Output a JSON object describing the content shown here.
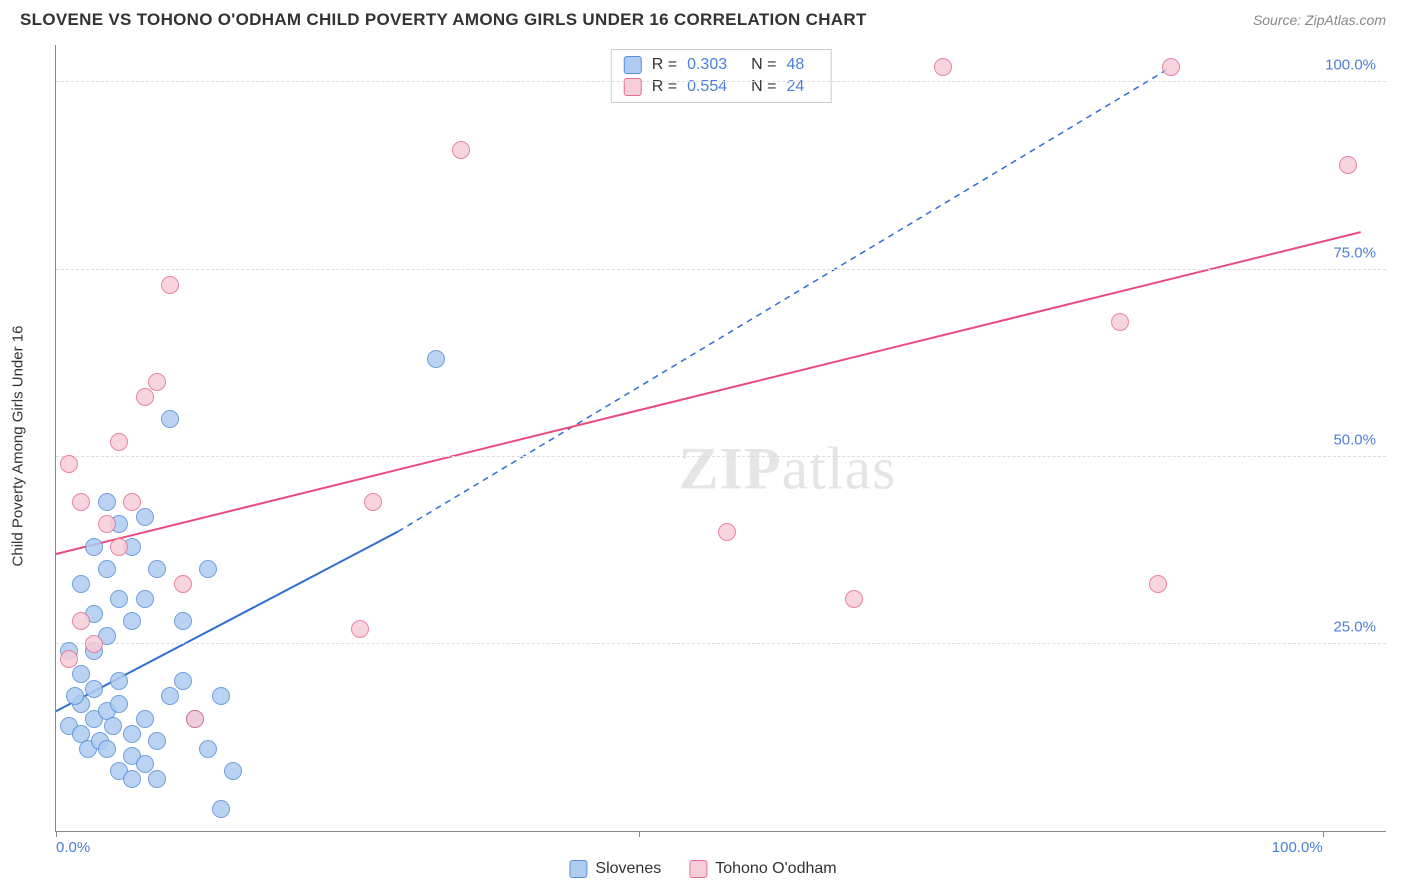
{
  "title": "SLOVENE VS TOHONO O'ODHAM CHILD POVERTY AMONG GIRLS UNDER 16 CORRELATION CHART",
  "source_label": "Source: ZipAtlas.com",
  "ylabel": "Child Poverty Among Girls Under 16",
  "watermark": {
    "bold": "ZIP",
    "rest": "atlas"
  },
  "chart": {
    "type": "scatter",
    "background_color": "#ffffff",
    "grid_color": "#dddddd",
    "axis_color": "#888888",
    "label_color": "#4a7fd8",
    "xlim": [
      0,
      105
    ],
    "ylim": [
      0,
      105
    ],
    "ytick_step": 25,
    "ytick_labels": [
      "25.0%",
      "50.0%",
      "75.0%",
      "100.0%"
    ],
    "xtick_positions": [
      0,
      46,
      100
    ],
    "xtick_labels": [
      "0.0%",
      "",
      "100.0%"
    ],
    "marker_radius": 9,
    "marker_border_width": 1.5,
    "trend_line_width": 2,
    "series": [
      {
        "name": "Slovenes",
        "marker_fill": "#aeccf2",
        "marker_stroke": "#5a8fd6",
        "line_color": "#2e6fd1",
        "r": "0.303",
        "n": "48",
        "points": [
          [
            1,
            14
          ],
          [
            2,
            17
          ],
          [
            2,
            13
          ],
          [
            3,
            15
          ],
          [
            1.5,
            18
          ],
          [
            2.5,
            11
          ],
          [
            3,
            19
          ],
          [
            4,
            16
          ],
          [
            3.5,
            12
          ],
          [
            4.5,
            14
          ],
          [
            2,
            21
          ],
          [
            1,
            24
          ],
          [
            3,
            24
          ],
          [
            5,
            17
          ],
          [
            4,
            11
          ],
          [
            6,
            13
          ],
          [
            5,
            20
          ],
          [
            7,
            15
          ],
          [
            6,
            10
          ],
          [
            8,
            12
          ],
          [
            7,
            9
          ],
          [
            9,
            18
          ],
          [
            8,
            7
          ],
          [
            4,
            26
          ],
          [
            3,
            29
          ],
          [
            5,
            31
          ],
          [
            6,
            28
          ],
          [
            2,
            33
          ],
          [
            4,
            35
          ],
          [
            7,
            31
          ],
          [
            3,
            38
          ],
          [
            5,
            41
          ],
          [
            6,
            38
          ],
          [
            8,
            35
          ],
          [
            4,
            44
          ],
          [
            10,
            20
          ],
          [
            11,
            15
          ],
          [
            12,
            11
          ],
          [
            13,
            18
          ],
          [
            14,
            8
          ],
          [
            10,
            28
          ],
          [
            9,
            55
          ],
          [
            12,
            35
          ],
          [
            13,
            3
          ],
          [
            30,
            63
          ],
          [
            5,
            8
          ],
          [
            6,
            7
          ],
          [
            7,
            42
          ]
        ],
        "trend": {
          "x1": 0,
          "y1": 16,
          "x2": 27,
          "y2": 40
        },
        "trend_ext": {
          "x1": 27,
          "y1": 40,
          "x2": 88,
          "y2": 102
        }
      },
      {
        "name": "Tohono O'odham",
        "marker_fill": "#f7cdd8",
        "marker_stroke": "#e66e92",
        "line_color": "#e94c7a",
        "r": "0.554",
        "n": "24",
        "points": [
          [
            1,
            23
          ],
          [
            2,
            28
          ],
          [
            3,
            25
          ],
          [
            1,
            49
          ],
          [
            2,
            44
          ],
          [
            4,
            41
          ],
          [
            5,
            38
          ],
          [
            6,
            44
          ],
          [
            7,
            58
          ],
          [
            8,
            60
          ],
          [
            9,
            73
          ],
          [
            5,
            52
          ],
          [
            10,
            33
          ],
          [
            11,
            15
          ],
          [
            24,
            27
          ],
          [
            25,
            44
          ],
          [
            53,
            40
          ],
          [
            32,
            91
          ],
          [
            63,
            31
          ],
          [
            70,
            102
          ],
          [
            88,
            102
          ],
          [
            84,
            68
          ],
          [
            87,
            33
          ],
          [
            102,
            89
          ]
        ],
        "trend": {
          "x1": 0,
          "y1": 37,
          "x2": 103,
          "y2": 80
        }
      }
    ]
  },
  "legend_bottom": [
    {
      "label": "Slovenes",
      "fill": "#aeccf2",
      "stroke": "#5a8fd6"
    },
    {
      "label": "Tohono O'odham",
      "fill": "#f7cdd8",
      "stroke": "#e66e92"
    }
  ]
}
